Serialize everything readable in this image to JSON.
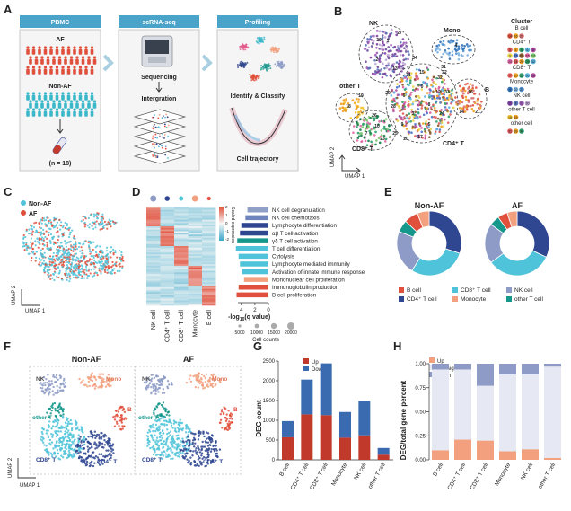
{
  "panel_letters": [
    "A",
    "B",
    "C",
    "D",
    "E",
    "F",
    "G",
    "H"
  ],
  "panel_a": {
    "steps": [
      "PBMC",
      "scRNA-seq",
      "Profiling"
    ],
    "af_label": "AF",
    "non_af_label": "Non-AF",
    "n_label": "(n = 18)",
    "sequencing_label": "Sequencing",
    "integration_label": "Intergration",
    "identify_label": "Identify & Classify",
    "trajectory_label": "Cell trajectory",
    "colors": {
      "banner": "#4aa3c9",
      "af_people": "#e0503c",
      "nonaf_people": "#3ab7c9"
    }
  },
  "panel_b": {
    "cluster_title": "Cluster",
    "regions": {
      "nk": "NK",
      "mono": "Mono",
      "b": "B",
      "other_t": "other T",
      "cd8": "CD8⁺ T",
      "cd4": "CD4⁺ T"
    },
    "umap1": "UMAP 1",
    "umap2": "UMAP 2",
    "legend_groups": [
      {
        "name": "B cell",
        "clusters": [
          "14",
          "16",
          "21"
        ]
      },
      {
        "name": "CD4⁺ T",
        "clusters": [
          "0",
          "3",
          "5",
          "6",
          "8",
          "9",
          "11",
          "12",
          "15",
          "17",
          "20",
          "24",
          "25",
          "29",
          "32"
        ]
      },
      {
        "name": "CD8⁺ T",
        "clusters": [
          "7",
          "10",
          "23",
          "26",
          "28"
        ]
      },
      {
        "name": "Monocyte",
        "clusters": [
          "4",
          "22",
          "27"
        ]
      },
      {
        "name": "NK cell",
        "clusters": [
          "1",
          "2",
          "13",
          "30"
        ]
      },
      {
        "name": "other T cell",
        "clusters": [
          "18",
          "19"
        ]
      },
      {
        "name": "other  cell",
        "clusters": [
          "31",
          "33",
          "34"
        ]
      }
    ]
  },
  "panel_c": {
    "legend": [
      {
        "label": "Non-AF",
        "color": "#4fc3d9"
      },
      {
        "label": "AF",
        "color": "#e0503c"
      }
    ],
    "umap1": "UMAP 1",
    "umap2": "UMAP 2"
  },
  "panel_d": {
    "columns": [
      "NK cell",
      "CD4⁺ T cell",
      "CD8⁺ T cell",
      "Monocyte",
      "B cell"
    ],
    "scale_label": "Scaled expression",
    "scale_ticks": [
      "2",
      "1",
      "0",
      "-1",
      "-2"
    ],
    "terms": [
      {
        "label": "NK cell degranulation",
        "color": "#8ea0c8"
      },
      {
        "label": "NK cell chemotaxis",
        "color": "#6d84bd"
      },
      {
        "label": "Lymphocyte differentiation",
        "color": "#2f4690"
      },
      {
        "label": "αβ T cell activation",
        "color": "#2f4690"
      },
      {
        "label": "γδ T cell activation",
        "color": "#15978b"
      },
      {
        "label": "T cell differentiation",
        "color": "#4fc3d9"
      },
      {
        "label": "Cytolysis",
        "color": "#4fc3d9"
      },
      {
        "label": "Lymphocyte mediated immunity",
        "color": "#4fc3d9"
      },
      {
        "label": "Activation of innate immune response",
        "color": "#4fc3d9"
      },
      {
        "label": "Mononuclear cell proliferation",
        "color": "#f2a07e"
      },
      {
        "label": "Immunoglobulin production",
        "color": "#e0503c"
      },
      {
        "label": "B cell proliferation",
        "color": "#e0503c"
      }
    ],
    "bar_values": [
      3.1,
      3.4,
      4.0,
      4.2,
      4.6,
      4.8,
      4.4,
      4.2,
      3.9,
      3.6,
      4.4,
      4.7
    ],
    "xticks": [
      "4",
      "2",
      "0"
    ],
    "xlabel_main": "-log",
    "xlabel_sub": "10",
    "xlabel_tail": "(q value)",
    "size_title": "Cell counts",
    "size_ticks": [
      "5000",
      "10000",
      "15000",
      "20000"
    ]
  },
  "panel_e": {
    "titles": [
      "Non-AF",
      "AF"
    ],
    "legend": [
      {
        "label": "B cell",
        "color": "#e0503c"
      },
      {
        "label": "CD8⁺ T cell",
        "color": "#4fc3d9"
      },
      {
        "label": "NK cell",
        "color": "#8d9bc6"
      },
      {
        "label": "CD4⁺ T cell",
        "color": "#2f4690"
      },
      {
        "label": "Monocyte",
        "color": "#f2a07e"
      },
      {
        "label": "other T cell",
        "color": "#15978b"
      }
    ]
  },
  "panel_f": {
    "titles": [
      "Non-AF",
      "AF"
    ],
    "regions": {
      "nk": "NK",
      "mono": "Mono",
      "b": "B",
      "other_t": "other T",
      "cd8": "CD8⁺ T",
      "cd4": "CD4⁺ T"
    },
    "umap1": "UMAP 1",
    "umap2": "UMAP 2"
  },
  "chart_data": [
    {
      "type": "pie",
      "title": "Non-AF",
      "categories": [
        "CD4⁺ T cell",
        "CD8⁺ T cell",
        "NK cell",
        "other T cell",
        "B cell",
        "Monocyte"
      ],
      "values": [
        30,
        29,
        22,
        6,
        7,
        6
      ],
      "colors": [
        "#2f4690",
        "#4fc3d9",
        "#8d9bc6",
        "#15978b",
        "#e0503c",
        "#f2a07e"
      ]
    },
    {
      "type": "pie",
      "title": "AF",
      "categories": [
        "CD4⁺ T cell",
        "CD8⁺ T cell",
        "NK cell",
        "other T cell",
        "B cell",
        "Monocyte"
      ],
      "values": [
        32,
        33,
        20,
        5,
        5,
        5
      ],
      "colors": [
        "#2f4690",
        "#4fc3d9",
        "#8d9bc6",
        "#15978b",
        "#e0503c",
        "#f2a07e"
      ]
    },
    {
      "type": "bar",
      "stacked": true,
      "categories": [
        "B cell",
        "CD4⁺ T cell",
        "CD8⁺ T cell",
        "Monocyte",
        "NK cell",
        "other T cell"
      ],
      "series": [
        {
          "name": "Up",
          "color": "#c0392b",
          "values": [
            570,
            1150,
            1130,
            560,
            620,
            130
          ]
        },
        {
          "name": "Down",
          "color": "#3a6bb0",
          "values": [
            410,
            880,
            1310,
            650,
            870,
            170
          ]
        }
      ],
      "ylabel": "DEG count",
      "ylim": [
        0,
        2500
      ],
      "yticks": [
        0,
        500,
        1000,
        1500,
        2000,
        2500
      ]
    },
    {
      "type": "bar",
      "stacked": true,
      "categories": [
        "B cell",
        "CD4⁺ T cell",
        "CD8⁺ T cell",
        "Monocyte",
        "NK cell",
        "other T cell"
      ],
      "series": [
        {
          "name": "Up",
          "color": "#f2a07e",
          "values": [
            0.1,
            0.21,
            0.2,
            0.09,
            0.11,
            0.02
          ]
        },
        {
          "name": "Not significant",
          "color": "#e6e9f3",
          "values": [
            0.84,
            0.73,
            0.57,
            0.8,
            0.78,
            0.95
          ]
        },
        {
          "name": "Down",
          "color": "#8d9bc6",
          "values": [
            0.06,
            0.06,
            0.23,
            0.11,
            0.11,
            0.03
          ]
        }
      ],
      "ylabel": "DEG/total gene percent",
      "ylim": [
        0,
        1
      ],
      "yticks": [
        "0.00",
        "0.25",
        "0.50",
        "0.75",
        "1.00"
      ]
    }
  ]
}
